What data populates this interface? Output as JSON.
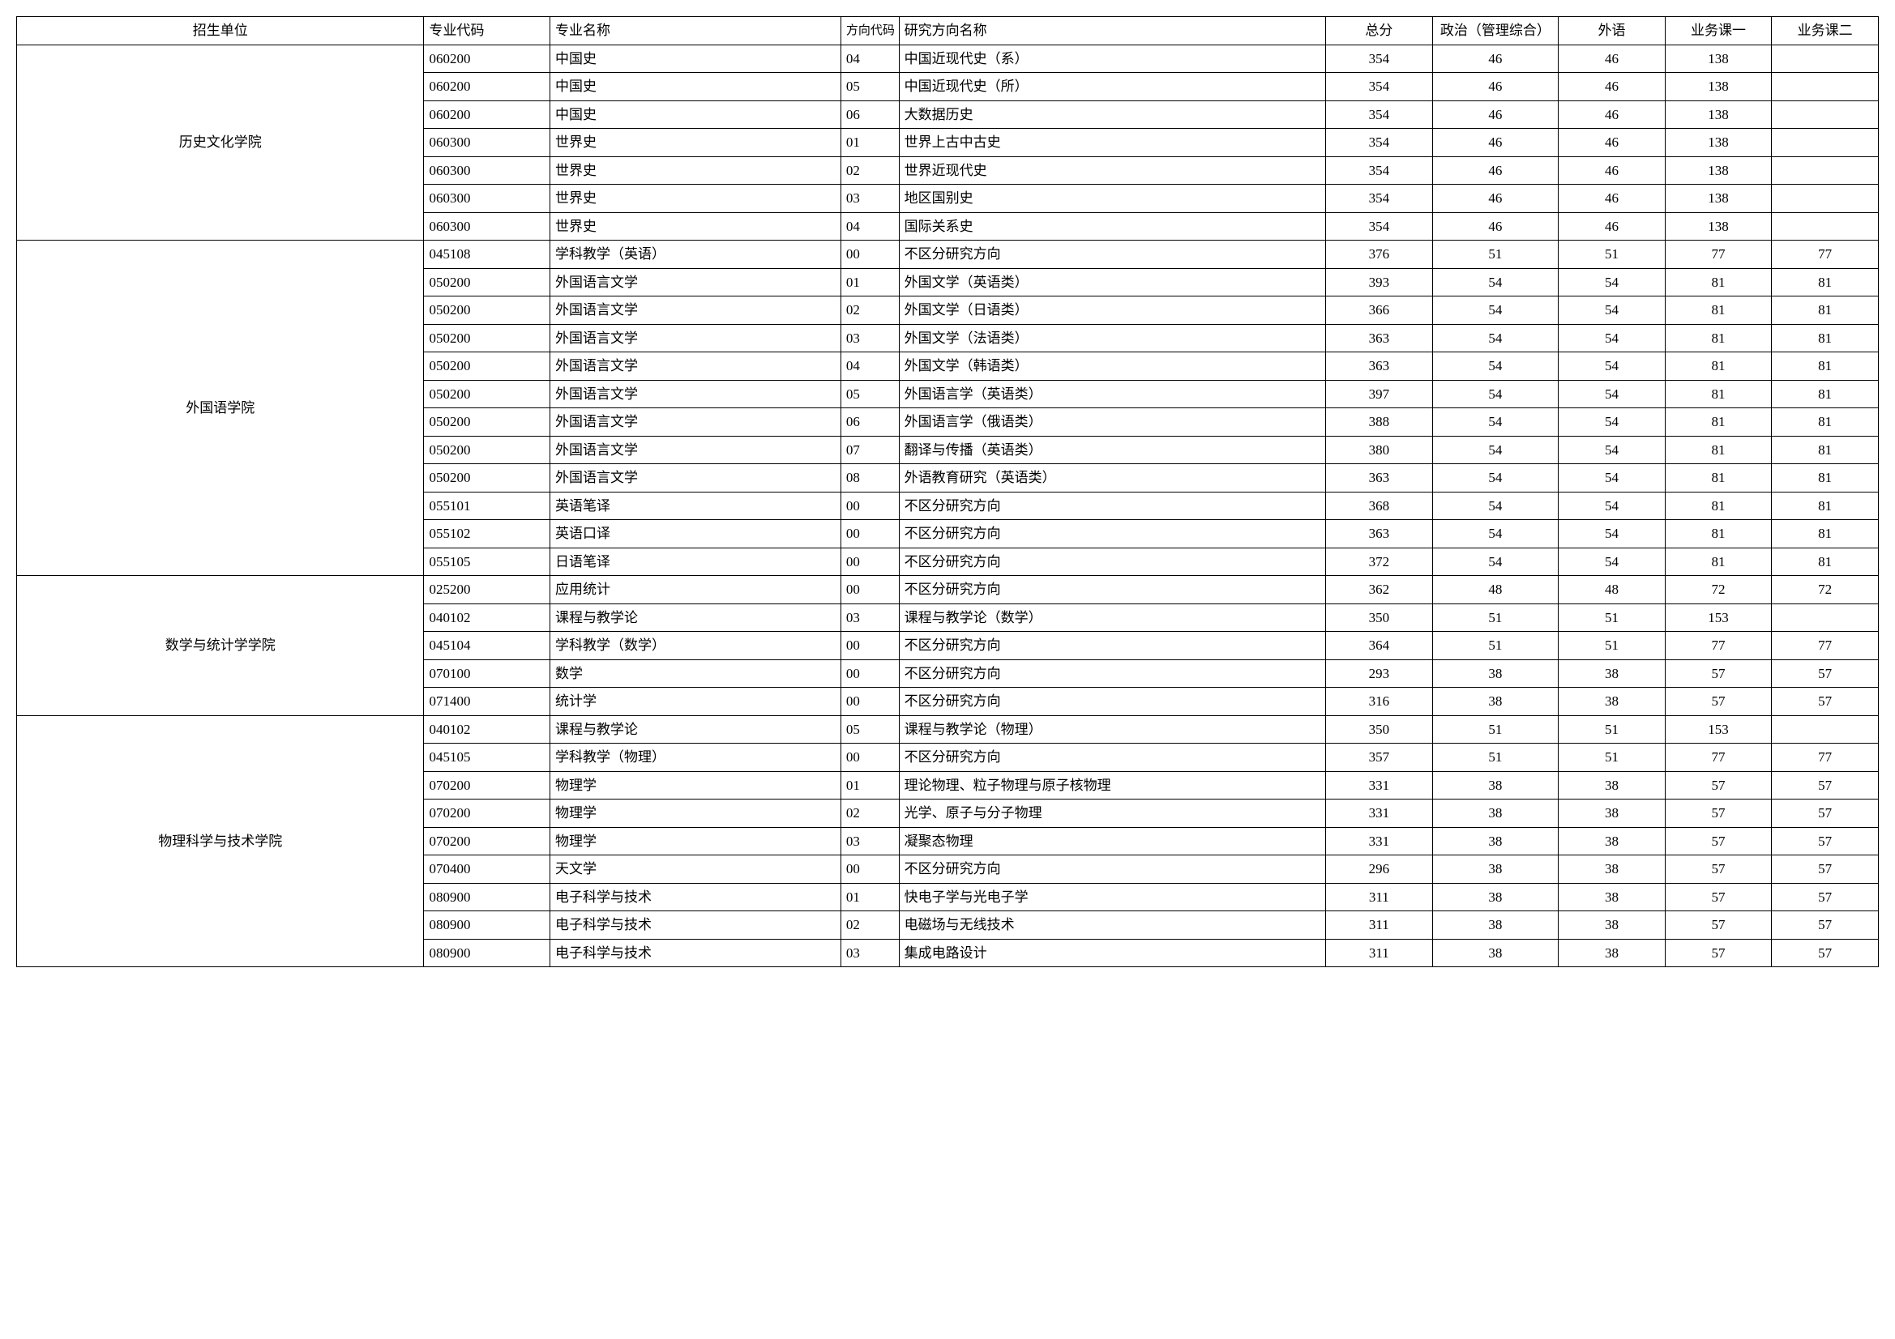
{
  "table": {
    "headers": {
      "unit": "招生单位",
      "code": "专业代码",
      "major": "专业名称",
      "dirCode": "方向代码",
      "dirName": "研究方向名称",
      "total": "总分",
      "politics": "政治（管理综合）",
      "foreign": "外语",
      "course1": "业务课一",
      "course2": "业务课二"
    },
    "colWidths": {
      "unit": "21%",
      "code": "6.5%",
      "major": "15%",
      "dirCode": "3%",
      "dirName": "22%",
      "total": "5.5%",
      "politics": "6.5%",
      "foreign": "5.5%",
      "course1": "5.5%",
      "course2": "5.5%"
    },
    "fontSize": 17,
    "borderColor": "#000000",
    "backgroundColor": "#ffffff",
    "groups": [
      {
        "unit": "历史文化学院",
        "rows": [
          {
            "code": "060200",
            "major": "中国史",
            "dirCode": "04",
            "dirName": "中国近现代史（系）",
            "total": "354",
            "pol": "46",
            "lang": "46",
            "c1": "138",
            "c2": ""
          },
          {
            "code": "060200",
            "major": "中国史",
            "dirCode": "05",
            "dirName": "中国近现代史（所）",
            "total": "354",
            "pol": "46",
            "lang": "46",
            "c1": "138",
            "c2": ""
          },
          {
            "code": "060200",
            "major": "中国史",
            "dirCode": "06",
            "dirName": "大数据历史",
            "total": "354",
            "pol": "46",
            "lang": "46",
            "c1": "138",
            "c2": ""
          },
          {
            "code": "060300",
            "major": "世界史",
            "dirCode": "01",
            "dirName": "世界上古中古史",
            "total": "354",
            "pol": "46",
            "lang": "46",
            "c1": "138",
            "c2": ""
          },
          {
            "code": "060300",
            "major": "世界史",
            "dirCode": "02",
            "dirName": "世界近现代史",
            "total": "354",
            "pol": "46",
            "lang": "46",
            "c1": "138",
            "c2": ""
          },
          {
            "code": "060300",
            "major": "世界史",
            "dirCode": "03",
            "dirName": "地区国别史",
            "total": "354",
            "pol": "46",
            "lang": "46",
            "c1": "138",
            "c2": ""
          },
          {
            "code": "060300",
            "major": "世界史",
            "dirCode": "04",
            "dirName": "国际关系史",
            "total": "354",
            "pol": "46",
            "lang": "46",
            "c1": "138",
            "c2": ""
          }
        ]
      },
      {
        "unit": "外国语学院",
        "rows": [
          {
            "code": "045108",
            "major": "学科教学（英语）",
            "dirCode": "00",
            "dirName": "不区分研究方向",
            "total": "376",
            "pol": "51",
            "lang": "51",
            "c1": "77",
            "c2": "77"
          },
          {
            "code": "050200",
            "major": "外国语言文学",
            "dirCode": "01",
            "dirName": "外国文学（英语类）",
            "total": "393",
            "pol": "54",
            "lang": "54",
            "c1": "81",
            "c2": "81"
          },
          {
            "code": "050200",
            "major": "外国语言文学",
            "dirCode": "02",
            "dirName": "外国文学（日语类）",
            "total": "366",
            "pol": "54",
            "lang": "54",
            "c1": "81",
            "c2": "81"
          },
          {
            "code": "050200",
            "major": "外国语言文学",
            "dirCode": "03",
            "dirName": "外国文学（法语类）",
            "total": "363",
            "pol": "54",
            "lang": "54",
            "c1": "81",
            "c2": "81"
          },
          {
            "code": "050200",
            "major": "外国语言文学",
            "dirCode": "04",
            "dirName": "外国文学（韩语类）",
            "total": "363",
            "pol": "54",
            "lang": "54",
            "c1": "81",
            "c2": "81"
          },
          {
            "code": "050200",
            "major": "外国语言文学",
            "dirCode": "05",
            "dirName": "外国语言学（英语类）",
            "total": "397",
            "pol": "54",
            "lang": "54",
            "c1": "81",
            "c2": "81"
          },
          {
            "code": "050200",
            "major": "外国语言文学",
            "dirCode": "06",
            "dirName": "外国语言学（俄语类）",
            "total": "388",
            "pol": "54",
            "lang": "54",
            "c1": "81",
            "c2": "81"
          },
          {
            "code": "050200",
            "major": "外国语言文学",
            "dirCode": "07",
            "dirName": "翻译与传播（英语类）",
            "total": "380",
            "pol": "54",
            "lang": "54",
            "c1": "81",
            "c2": "81"
          },
          {
            "code": "050200",
            "major": "外国语言文学",
            "dirCode": "08",
            "dirName": "外语教育研究（英语类）",
            "total": "363",
            "pol": "54",
            "lang": "54",
            "c1": "81",
            "c2": "81"
          },
          {
            "code": "055101",
            "major": "英语笔译",
            "dirCode": "00",
            "dirName": "不区分研究方向",
            "total": "368",
            "pol": "54",
            "lang": "54",
            "c1": "81",
            "c2": "81"
          },
          {
            "code": "055102",
            "major": "英语口译",
            "dirCode": "00",
            "dirName": "不区分研究方向",
            "total": "363",
            "pol": "54",
            "lang": "54",
            "c1": "81",
            "c2": "81"
          },
          {
            "code": "055105",
            "major": "日语笔译",
            "dirCode": "00",
            "dirName": "不区分研究方向",
            "total": "372",
            "pol": "54",
            "lang": "54",
            "c1": "81",
            "c2": "81"
          }
        ]
      },
      {
        "unit": "数学与统计学学院",
        "rows": [
          {
            "code": "025200",
            "major": "应用统计",
            "dirCode": "00",
            "dirName": "不区分研究方向",
            "total": "362",
            "pol": "48",
            "lang": "48",
            "c1": "72",
            "c2": "72"
          },
          {
            "code": "040102",
            "major": "课程与教学论",
            "dirCode": "03",
            "dirName": "课程与教学论（数学）",
            "total": "350",
            "pol": "51",
            "lang": "51",
            "c1": "153",
            "c2": ""
          },
          {
            "code": "045104",
            "major": "学科教学（数学）",
            "dirCode": "00",
            "dirName": "不区分研究方向",
            "total": "364",
            "pol": "51",
            "lang": "51",
            "c1": "77",
            "c2": "77"
          },
          {
            "code": "070100",
            "major": "数学",
            "dirCode": "00",
            "dirName": "不区分研究方向",
            "total": "293",
            "pol": "38",
            "lang": "38",
            "c1": "57",
            "c2": "57"
          },
          {
            "code": "071400",
            "major": "统计学",
            "dirCode": "00",
            "dirName": "不区分研究方向",
            "total": "316",
            "pol": "38",
            "lang": "38",
            "c1": "57",
            "c2": "57"
          }
        ]
      },
      {
        "unit": "物理科学与技术学院",
        "rows": [
          {
            "code": "040102",
            "major": "课程与教学论",
            "dirCode": "05",
            "dirName": "课程与教学论（物理）",
            "total": "350",
            "pol": "51",
            "lang": "51",
            "c1": "153",
            "c2": ""
          },
          {
            "code": "045105",
            "major": "学科教学（物理）",
            "dirCode": "00",
            "dirName": "不区分研究方向",
            "total": "357",
            "pol": "51",
            "lang": "51",
            "c1": "77",
            "c2": "77"
          },
          {
            "code": "070200",
            "major": "物理学",
            "dirCode": "01",
            "dirName": "理论物理、粒子物理与原子核物理",
            "total": "331",
            "pol": "38",
            "lang": "38",
            "c1": "57",
            "c2": "57"
          },
          {
            "code": "070200",
            "major": "物理学",
            "dirCode": "02",
            "dirName": "光学、原子与分子物理",
            "total": "331",
            "pol": "38",
            "lang": "38",
            "c1": "57",
            "c2": "57"
          },
          {
            "code": "070200",
            "major": "物理学",
            "dirCode": "03",
            "dirName": "凝聚态物理",
            "total": "331",
            "pol": "38",
            "lang": "38",
            "c1": "57",
            "c2": "57"
          },
          {
            "code": "070400",
            "major": "天文学",
            "dirCode": "00",
            "dirName": "不区分研究方向",
            "total": "296",
            "pol": "38",
            "lang": "38",
            "c1": "57",
            "c2": "57"
          },
          {
            "code": "080900",
            "major": "电子科学与技术",
            "dirCode": "01",
            "dirName": "快电子学与光电子学",
            "total": "311",
            "pol": "38",
            "lang": "38",
            "c1": "57",
            "c2": "57"
          },
          {
            "code": "080900",
            "major": "电子科学与技术",
            "dirCode": "02",
            "dirName": "电磁场与无线技术",
            "total": "311",
            "pol": "38",
            "lang": "38",
            "c1": "57",
            "c2": "57"
          },
          {
            "code": "080900",
            "major": "电子科学与技术",
            "dirCode": "03",
            "dirName": "集成电路设计",
            "total": "311",
            "pol": "38",
            "lang": "38",
            "c1": "57",
            "c2": "57"
          }
        ]
      }
    ]
  }
}
